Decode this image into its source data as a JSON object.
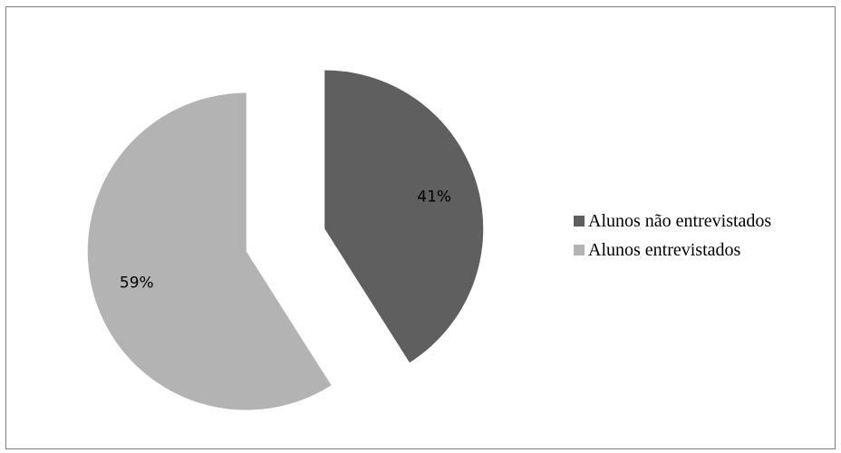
{
  "chart_data": {
    "type": "pie",
    "title": "",
    "slices": [
      {
        "label": "Alunos não entrevistados",
        "value": 41,
        "display": "41%",
        "color": "#5f5f5f"
      },
      {
        "label": "Alunos entrevistados",
        "value": 59,
        "display": "59%",
        "color": "#b3b3b3"
      }
    ],
    "legend_position": "right",
    "exploded": true
  }
}
